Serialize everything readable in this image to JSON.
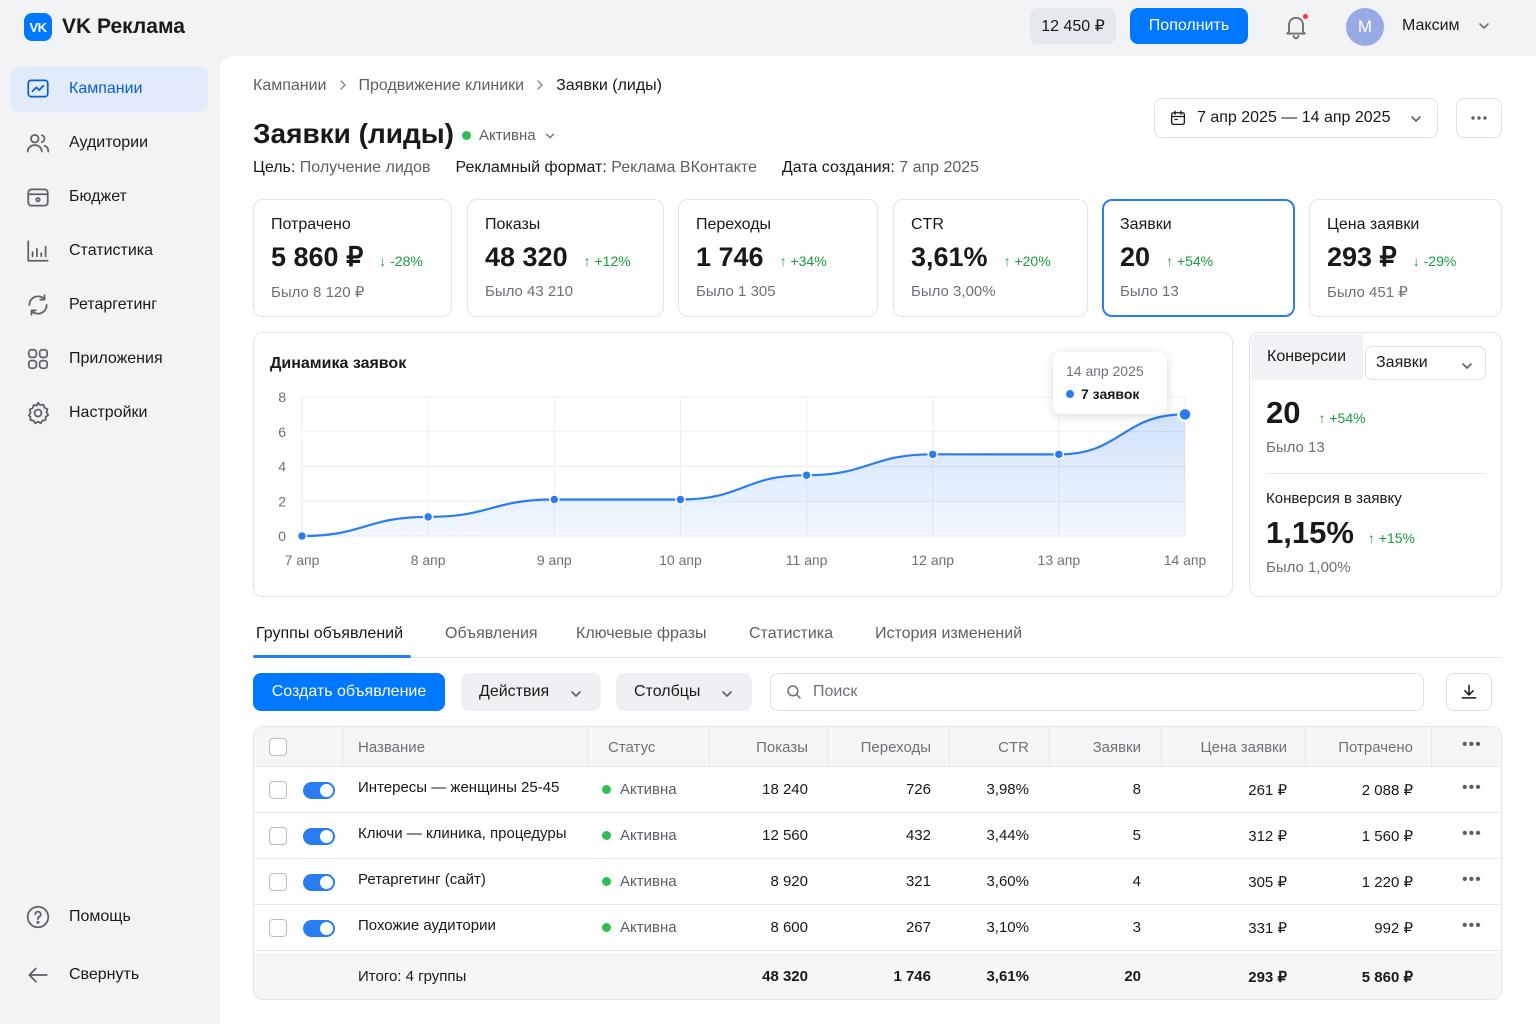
{
  "app": {
    "logo_mark": "VK",
    "title": "VK Реклама"
  },
  "header": {
    "balance": "12 450 ₽",
    "topup_label": "Пополнить",
    "avatar_initial": "М",
    "user_name": "Максим"
  },
  "sidebar": {
    "items": [
      {
        "label": "Кампании",
        "icon": "campaign-icon",
        "active": true
      },
      {
        "label": "Аудитории",
        "icon": "users-icon"
      },
      {
        "label": "Бюджет",
        "icon": "wallet-icon"
      },
      {
        "label": "Статистика",
        "icon": "chart-icon"
      },
      {
        "label": "Ретаргетинг",
        "icon": "retarget-icon"
      },
      {
        "label": "Приложения",
        "icon": "apps-icon"
      },
      {
        "label": "Настройки",
        "icon": "gear-icon"
      }
    ],
    "help_label": "Помощь",
    "collapse_label": "Свернуть"
  },
  "breadcrumb": [
    "Кампании",
    "Продвижение клиники",
    "Заявки (лиды)"
  ],
  "page": {
    "title": "Заявки (лиды)",
    "status": "Активна",
    "goal_key": "Цель:",
    "goal_value": "Получение лидов",
    "format_key": "Рекламный формат:",
    "format_value": "Реклама ВКонтакте",
    "created_key": "Дата создания:",
    "created_value": "7 апр 2025",
    "date_range": "7 апр 2025 — 14 апр 2025"
  },
  "kpis": [
    {
      "label": "Потрачено",
      "value": "5 860 ₽",
      "delta": "-28%",
      "dir": "down",
      "prev": "Было 8 120 ₽"
    },
    {
      "label": "Показы",
      "value": "48 320",
      "delta": "+12%",
      "dir": "up",
      "prev": "Было 43 210"
    },
    {
      "label": "Переходы",
      "value": "1 746",
      "delta": "+34%",
      "dir": "up",
      "prev": "Было 1 305"
    },
    {
      "label": "CTR",
      "value": "3,61%",
      "delta": "+20%",
      "dir": "up",
      "prev": "Было 3,00%"
    },
    {
      "label": "Заявки",
      "value": "20",
      "delta": "+54%",
      "dir": "up",
      "prev": "Было 13",
      "selected": true
    },
    {
      "label": "Цена заявки",
      "value": "293 ₽",
      "delta": "-29%",
      "dir": "down",
      "prev": "Было 451 ₽"
    }
  ],
  "chart_card": {
    "title": "Динамика заявок",
    "tooltip_date": "14 апр 2025",
    "tooltip_value": "7 заявок"
  },
  "chart_data": {
    "type": "area",
    "title": "Динамика заявок",
    "categories": [
      "7 апр",
      "8 апр",
      "9 апр",
      "10 апр",
      "11 апр",
      "12 апр",
      "13 апр",
      "14 апр"
    ],
    "values": [
      0,
      1.1,
      2.1,
      2.1,
      3.5,
      4.7,
      4.7,
      7
    ],
    "yticks": [
      0,
      2,
      4,
      6,
      8
    ],
    "ylim": [
      0,
      8
    ],
    "grid": true,
    "color": "#2a7df0"
  },
  "conversions": {
    "tab_label": "Конверсии",
    "select_value": "Заявки",
    "value": "20",
    "delta": "+54%",
    "prev": "Было 13",
    "sub_label": "Конверсия в заявку",
    "sub_value": "1,15%",
    "sub_delta": "+15%",
    "sub_prev": "Было 1,00%"
  },
  "tabs": [
    "Группы объявлений",
    "Объявления",
    "Ключевые фразы",
    "Статистика",
    "История изменений"
  ],
  "toolbar": {
    "create_label": "Создать объявление",
    "actions_label": "Действия",
    "columns_label": "Столбцы",
    "search_placeholder": "Поиск"
  },
  "table": {
    "headers": [
      "Название",
      "Статус",
      "Показы",
      "Переходы",
      "CTR",
      "Заявки",
      "Цена заявки",
      "Потрачено"
    ],
    "rows": [
      {
        "name": "Интересы — женщины 25-45",
        "status": "Активна",
        "shows": "18 240",
        "clicks": "726",
        "ctr": "3,98%",
        "leads": "8",
        "cpl": "261 ₽",
        "spent": "2 088 ₽"
      },
      {
        "name": "Ключи — клиника, процедуры",
        "status": "Активна",
        "shows": "12 560",
        "clicks": "432",
        "ctr": "3,44%",
        "leads": "5",
        "cpl": "312 ₽",
        "spent": "1 560 ₽"
      },
      {
        "name": "Ретаргетинг (сайт)",
        "status": "Активна",
        "shows": "8 920",
        "clicks": "321",
        "ctr": "3,60%",
        "leads": "4",
        "cpl": "305 ₽",
        "spent": "1 220 ₽"
      },
      {
        "name": "Похожие аудитории",
        "status": "Активна",
        "shows": "8 600",
        "clicks": "267",
        "ctr": "3,10%",
        "leads": "3",
        "cpl": "331 ₽",
        "spent": "992 ₽"
      }
    ],
    "total": {
      "label": "Итого: 4 группы",
      "shows": "48 320",
      "clicks": "1 746",
      "ctr": "3,61%",
      "leads": "20",
      "cpl": "293 ₽",
      "spent": "5 860 ₽"
    }
  }
}
